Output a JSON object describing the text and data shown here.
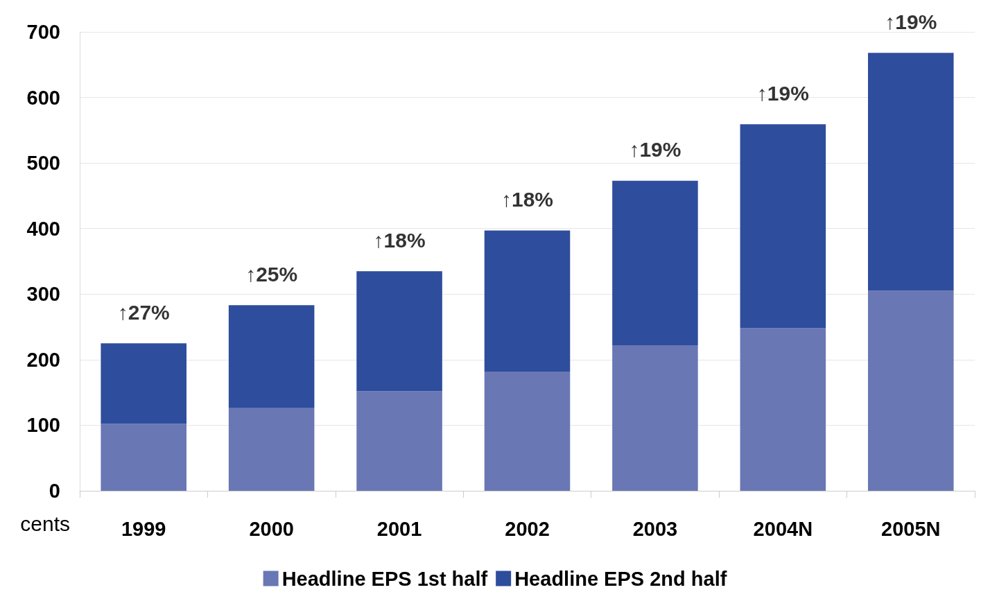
{
  "chart_data": {
    "type": "bar",
    "stacked": true,
    "ylabel": "cents",
    "categories": [
      "1999",
      "2000",
      "2001",
      "2002",
      "2003",
      "2004N",
      "2005N"
    ],
    "series": [
      {
        "name": "Headline EPS 1st half",
        "color": "#6a77b5",
        "values": [
          102,
          126,
          152,
          182,
          222,
          248,
          305
        ]
      },
      {
        "name": "Headline EPS 2nd half",
        "color": "#2e4d9c",
        "values": [
          123,
          157,
          183,
          215,
          251,
          311,
          363
        ]
      }
    ],
    "ylim": [
      0,
      700
    ],
    "yticks": [
      0,
      100,
      200,
      300,
      400,
      500,
      600,
      700
    ],
    "grid": "y",
    "legend": "bottom",
    "annotations": [
      {
        "text": "↑27%",
        "x": "1999",
        "y": 225
      },
      {
        "text": "↑25%",
        "x": "2000",
        "y": 283
      },
      {
        "text": "↑18%",
        "x": "2001",
        "y": 335
      },
      {
        "text": "↑18%",
        "x": "2002",
        "y": 397
      },
      {
        "text": "↑19%",
        "x": "2003",
        "y": 473
      },
      {
        "text": "↑19%",
        "x": "2004N",
        "y": 559
      },
      {
        "text": "↑19%",
        "x": "2005N",
        "y": 668
      }
    ]
  }
}
